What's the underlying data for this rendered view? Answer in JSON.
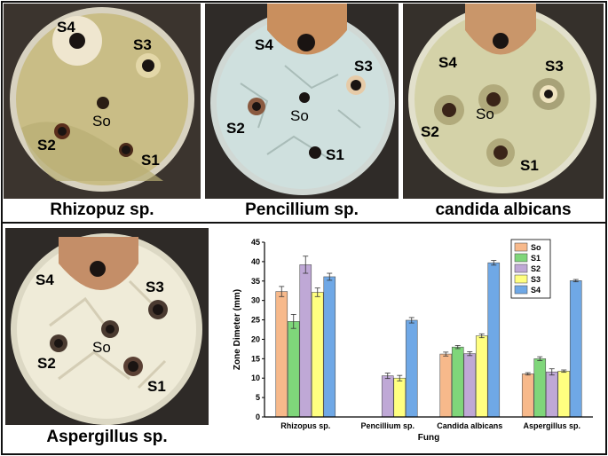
{
  "panels": [
    {
      "caption": "Rhizopuz sp.",
      "labels": {
        "s4": "S4",
        "s3": "S3",
        "so": "So",
        "s2": "S2",
        "s1": "S1"
      }
    },
    {
      "caption": "Pencillium sp.",
      "labels": {
        "s4": "S4",
        "s3": "S3",
        "so": "So",
        "s2": "S2",
        "s1": "S1"
      }
    },
    {
      "caption": "candida albicans",
      "labels": {
        "s4": "S4",
        "s3": "S3",
        "so": "So",
        "s2": "S2",
        "s1": "S1"
      }
    },
    {
      "caption": "Aspergillus sp.",
      "labels": {
        "s4": "S4",
        "s3": "S3",
        "so": "So",
        "s2": "S2",
        "s1": "S1"
      }
    }
  ],
  "colors": {
    "So": "#f7b98b",
    "S1": "#7fd67a",
    "S2": "#bfa8d6",
    "S3": "#ffff80",
    "S4": "#6fa8e6",
    "dish_rhizopus": "#c9bd86",
    "dish_pencillium": "#cfe0de",
    "dish_candida": "#d4d2a8",
    "dish_aspergillus": "#efebd8"
  },
  "chart_data": {
    "type": "bar",
    "categories": [
      "Rhizopus sp.",
      "Pencillium sp.",
      "Candida albicans",
      "Aspergillus sp."
    ],
    "series": [
      {
        "name": "So",
        "values": [
          32.3,
          null,
          16.2,
          11.1
        ],
        "errors": [
          1.3,
          null,
          0.5,
          0.3
        ]
      },
      {
        "name": "S1",
        "values": [
          24.6,
          null,
          18.0,
          15.0
        ],
        "errors": [
          1.8,
          null,
          0.4,
          0.5
        ]
      },
      {
        "name": "S2",
        "values": [
          39.2,
          10.6,
          16.3,
          11.6
        ],
        "errors": [
          2.2,
          0.7,
          0.5,
          0.8
        ]
      },
      {
        "name": "S3",
        "values": [
          32.1,
          10.0,
          20.9,
          11.8
        ],
        "errors": [
          1.1,
          0.7,
          0.5,
          0.3
        ]
      },
      {
        "name": "S4",
        "values": [
          36.1,
          24.9,
          39.7,
          35.1
        ],
        "errors": [
          0.9,
          0.7,
          0.6,
          0.3
        ]
      }
    ],
    "xlabel": "Fung",
    "ylabel": "Zone Dimeter (mm)",
    "ylim": [
      0,
      45
    ],
    "yticks": [
      0,
      5,
      10,
      15,
      20,
      25,
      30,
      35,
      40,
      45
    ],
    "legend": "top-right",
    "grid": false
  }
}
